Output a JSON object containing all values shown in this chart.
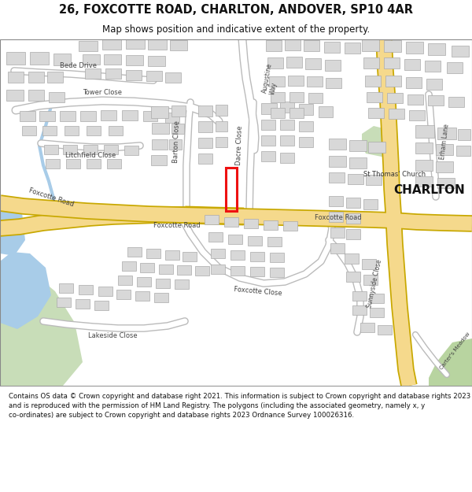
{
  "title_line1": "26, FOXCOTTE ROAD, CHARLTON, ANDOVER, SP10 4AR",
  "title_line2": "Map shows position and indicative extent of the property.",
  "footer": "Contains OS data © Crown copyright and database right 2021. This information is subject to Crown copyright and database rights 2023 and is reproduced with the permission of HM Land Registry. The polygons (including the associated geometry, namely x, y co-ordinates) are subject to Crown copyright and database rights 2023 Ordnance Survey 100026316.",
  "map_bg": "#f2f2f2",
  "road_fill": "#f5d98c",
  "road_edge": "#c8a800",
  "bldg_fill": "#d8d8d8",
  "bldg_edge": "#aaaaaa",
  "green1": "#c8ddb8",
  "green2": "#b8d4a0",
  "water": "#a8cce8",
  "red": "#ee1111",
  "text_dark": "#111111",
  "text_road": "#444444",
  "charlton_label": "CHARLTON",
  "church_label": "St Thomas' Church"
}
